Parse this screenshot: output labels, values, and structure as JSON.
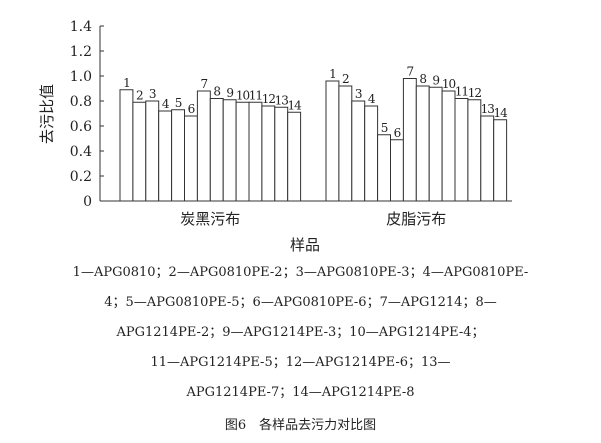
{
  "chart_data": {
    "type": "bar",
    "title": "",
    "xlabel": "样品",
    "ylabel": "去污比值",
    "ylim": [
      0,
      1.4
    ],
    "yticks": [
      "0",
      "0.2",
      "0.4",
      "0.6",
      "0.8",
      "1.0",
      "1.2",
      "1.4"
    ],
    "categories": [
      "炭黑污布",
      "皮脂污布"
    ],
    "bar_labels": [
      "1",
      "2",
      "3",
      "4",
      "5",
      "6",
      "7",
      "8",
      "9",
      "10",
      "11",
      "12",
      "13",
      "14"
    ],
    "series_values": [
      [
        0.89,
        0.79,
        0.8,
        0.72,
        0.73,
        0.68,
        0.88,
        0.82,
        0.81,
        0.79,
        0.79,
        0.76,
        0.75,
        0.71
      ],
      [
        0.96,
        0.92,
        0.8,
        0.76,
        0.53,
        0.49,
        0.98,
        0.92,
        0.91,
        0.88,
        0.82,
        0.81,
        0.68,
        0.65
      ]
    ],
    "grid": false,
    "bar_fill": "#ffffff",
    "bar_stroke": "#333333"
  },
  "legend_lines": [
    "1—APG0810；2—APG0810PE-2；3—APG0810PE-3；4—APG0810PE-",
    "4；5—APG0810PE-5；6—APG0810PE-6；7—APG1214；8—",
    "APG1214PE-2；9—APG1214PE-3；10—APG1214PE-4；",
    "11—APG1214PE-5；12—APG1214PE-6；13—",
    "APG1214PE-7；14—APG1214PE-8"
  ],
  "caption": "图6　各样品去污力对比图"
}
